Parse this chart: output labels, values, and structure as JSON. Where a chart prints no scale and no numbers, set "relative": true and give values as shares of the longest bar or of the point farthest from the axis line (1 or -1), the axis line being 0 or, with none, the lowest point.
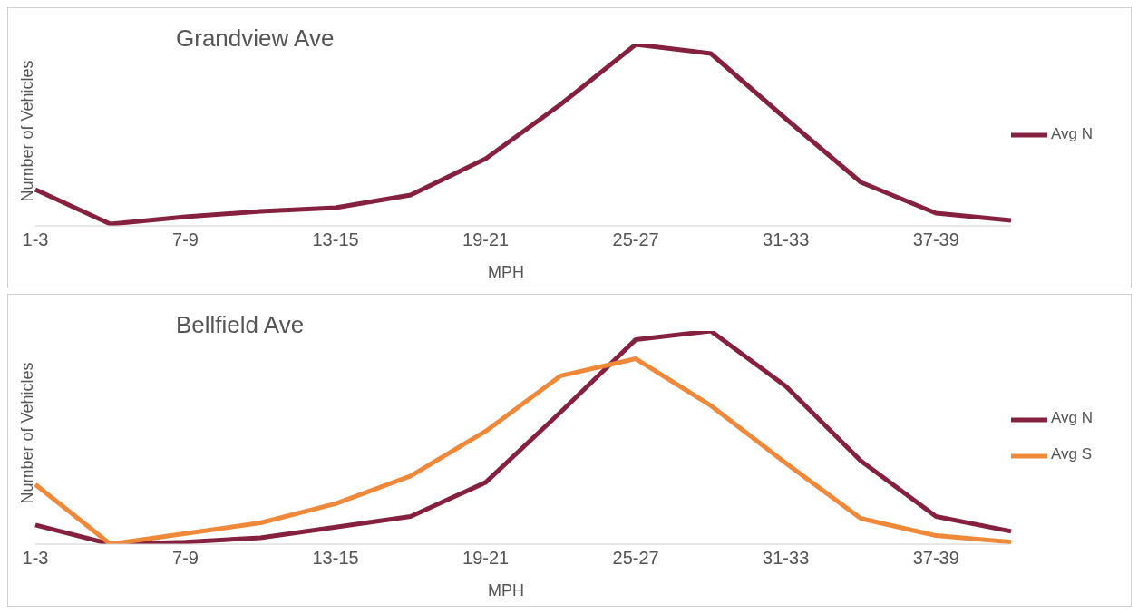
{
  "chart_data": [
    {
      "type": "line",
      "title": "Grandview Ave",
      "xlabel": "MPH",
      "ylabel": "Number of Vehicles",
      "relative": true,
      "tick_labels": "x",
      "grid": false,
      "legend": "right",
      "marker": "none",
      "line_style": "solid",
      "categories": [
        "1-3",
        null,
        "7-9",
        null,
        "13-15",
        null,
        "19-21",
        null,
        "25-27",
        null,
        "31-33",
        null,
        "37-39",
        null
      ],
      "series": [
        {
          "name": "Avg N",
          "color": "#86203f",
          "values": [
            0.2,
            0.01,
            0.05,
            0.08,
            0.1,
            0.17,
            0.37,
            0.67,
            1,
            0.95,
            0.59,
            0.24,
            0.07,
            0.03
          ]
        }
      ]
    },
    {
      "type": "line",
      "title": "Bellfield Ave",
      "xlabel": "MPH",
      "ylabel": "Number of Vehicles",
      "relative": true,
      "tick_labels": "x",
      "grid": false,
      "legend": "right",
      "marker": "none",
      "line_style": "solid",
      "categories": [
        "1-3",
        null,
        "7-9",
        null,
        "13-15",
        null,
        "19-21",
        null,
        "25-27",
        null,
        "31-33",
        null,
        "37-39",
        null
      ],
      "series": [
        {
          "name": "Avg N",
          "color": "#86203f",
          "values": [
            0.09,
            0,
            0.01,
            0.03,
            0.08,
            0.13,
            0.29,
            0.62,
            0.96,
            1,
            0.74,
            0.39,
            0.13,
            0.06
          ]
        },
        {
          "name": "Avg S",
          "color": "#f0883a",
          "values": [
            0.28,
            0,
            0.05,
            0.1,
            0.19,
            0.32,
            0.53,
            0.79,
            0.87,
            0.65,
            0.38,
            0.12,
            0.04,
            0.01
          ]
        }
      ]
    }
  ]
}
